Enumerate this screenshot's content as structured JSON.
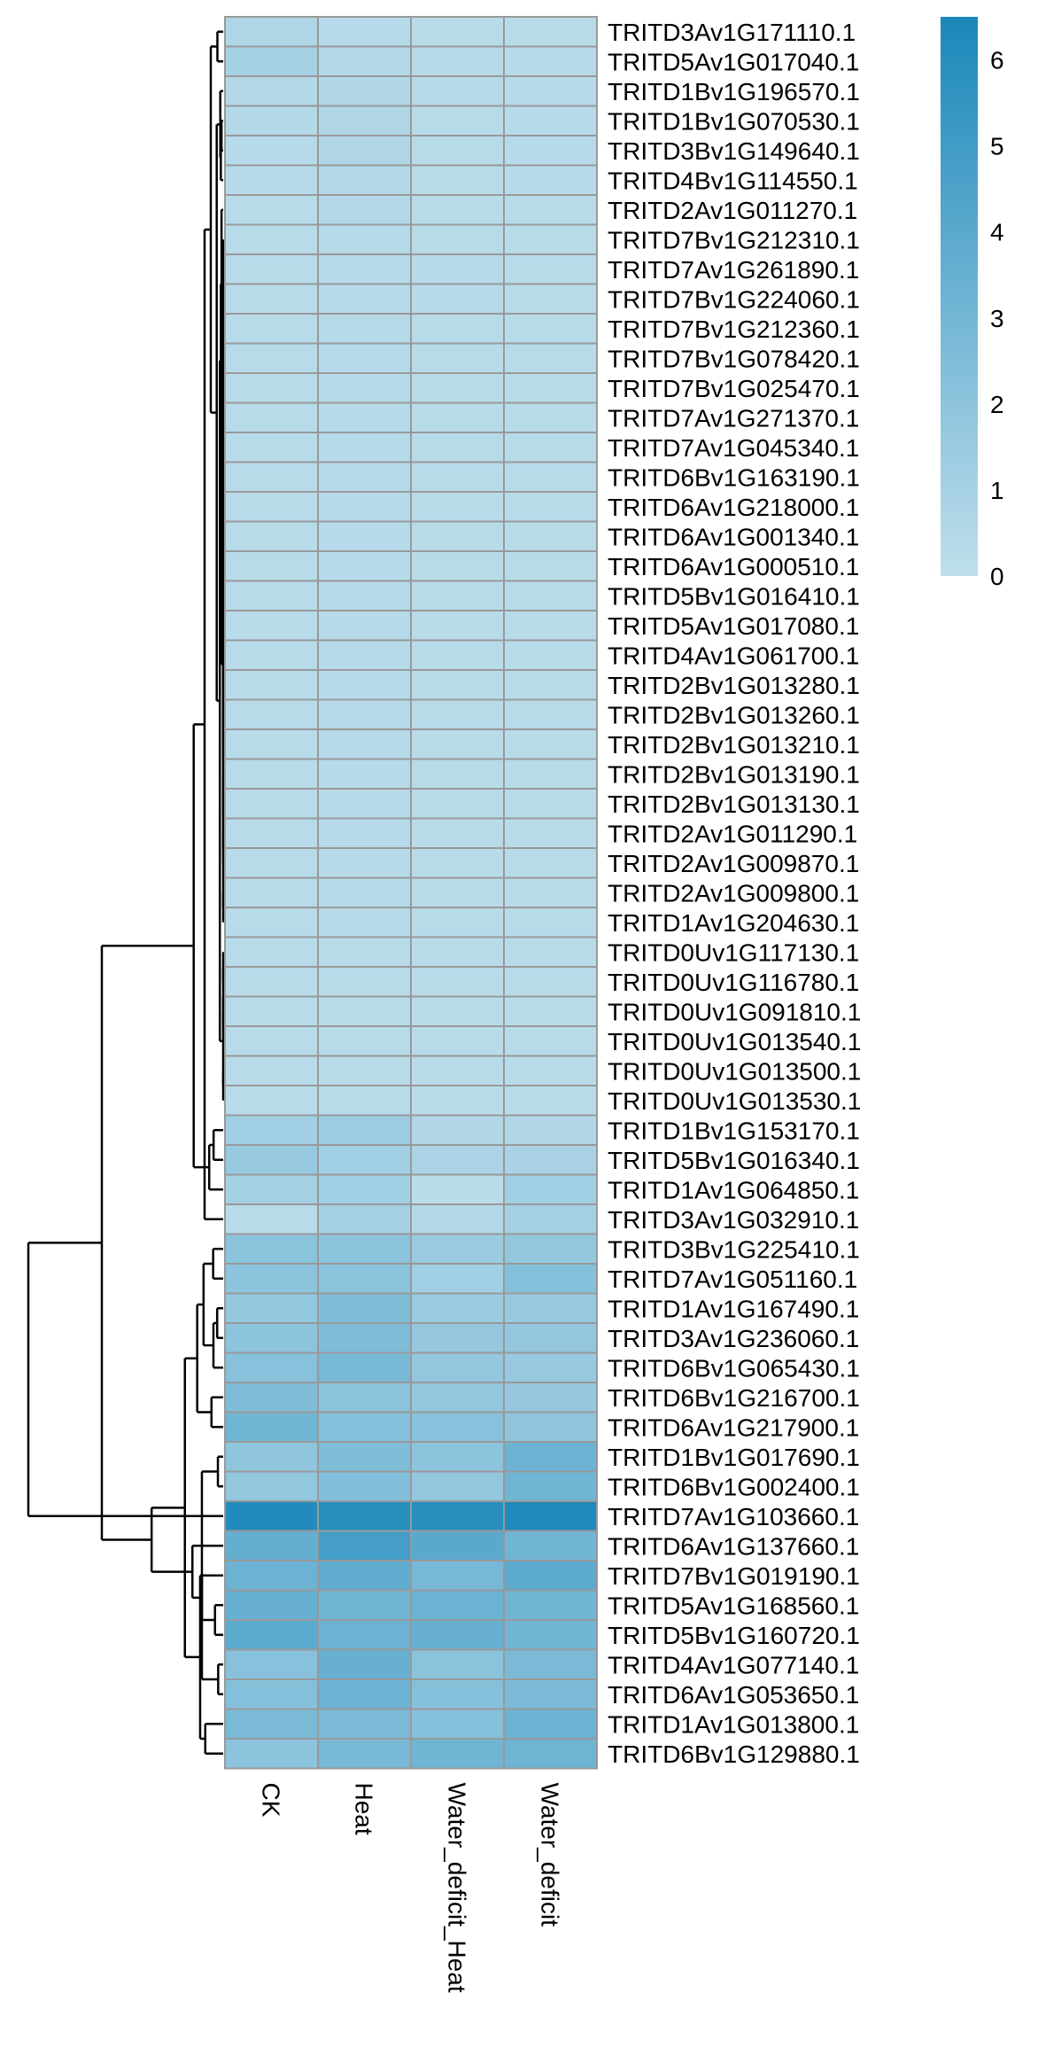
{
  "chart_data": {
    "type": "heatmap",
    "columns": [
      "CK",
      "Heat",
      "Water_deficit_Heat",
      "Water_deficit"
    ],
    "rows": [
      "TRITD3Av1G171110.1",
      "TRITD5Av1G017040.1",
      "TRITD1Bv1G196570.1",
      "TRITD1Bv1G070530.1",
      "TRITD3Bv1G149640.1",
      "TRITD4Bv1G114550.1",
      "TRITD2Av1G011270.1",
      "TRITD7Bv1G212310.1",
      "TRITD7Av1G261890.1",
      "TRITD7Bv1G224060.1",
      "TRITD7Bv1G212360.1",
      "TRITD7Bv1G078420.1",
      "TRITD7Bv1G025470.1",
      "TRITD7Av1G271370.1",
      "TRITD7Av1G045340.1",
      "TRITD6Bv1G163190.1",
      "TRITD6Av1G218000.1",
      "TRITD6Av1G001340.1",
      "TRITD6Av1G000510.1",
      "TRITD5Bv1G016410.1",
      "TRITD5Av1G017080.1",
      "TRITD4Av1G061700.1",
      "TRITD2Bv1G013280.1",
      "TRITD2Bv1G013260.1",
      "TRITD2Bv1G013210.1",
      "TRITD2Bv1G013190.1",
      "TRITD2Bv1G013130.1",
      "TRITD2Av1G011290.1",
      "TRITD2Av1G009870.1",
      "TRITD2Av1G009800.1",
      "TRITD1Av1G204630.1",
      "TRITD0Uv1G117130.1",
      "TRITD0Uv1G116780.1",
      "TRITD0Uv1G091810.1",
      "TRITD0Uv1G013540.1",
      "TRITD0Uv1G013500.1",
      "TRITD0Uv1G013530.1",
      "TRITD1Bv1G153170.1",
      "TRITD5Bv1G016340.1",
      "TRITD1Av1G064850.1",
      "TRITD3Av1G032910.1",
      "TRITD3Bv1G225410.1",
      "TRITD7Av1G051160.1",
      "TRITD1Av1G167490.1",
      "TRITD3Av1G236060.1",
      "TRITD6Bv1G065430.1",
      "TRITD6Bv1G216700.1",
      "TRITD6Av1G217900.1",
      "TRITD1Bv1G017690.1",
      "TRITD6Bv1G002400.1",
      "TRITD7Av1G103660.1",
      "TRITD6Av1G137660.1",
      "TRITD7Bv1G019190.1",
      "TRITD5Av1G168560.1",
      "TRITD5Bv1G160720.1",
      "TRITD4Av1G077140.1",
      "TRITD6Av1G053650.1",
      "TRITD1Av1G013800.1",
      "TRITD6Bv1G129880.1"
    ],
    "values": [
      [
        0.7,
        0.4,
        0.3,
        0.3
      ],
      [
        1.0,
        0.5,
        0.4,
        0.4
      ],
      [
        0.5,
        0.6,
        0.4,
        0.4
      ],
      [
        0.5,
        0.6,
        0.3,
        0.4
      ],
      [
        0.4,
        0.6,
        0.3,
        0.4
      ],
      [
        0.4,
        0.5,
        0.3,
        0.4
      ],
      [
        0.3,
        0.5,
        0.3,
        0.3
      ],
      [
        0.3,
        0.4,
        0.3,
        0.3
      ],
      [
        0.3,
        0.4,
        0.4,
        0.3
      ],
      [
        0.3,
        0.4,
        0.4,
        0.3
      ],
      [
        0.3,
        0.4,
        0.3,
        0.3
      ],
      [
        0.3,
        0.4,
        0.3,
        0.3
      ],
      [
        0.3,
        0.4,
        0.3,
        0.3
      ],
      [
        0.3,
        0.4,
        0.3,
        0.3
      ],
      [
        0.3,
        0.4,
        0.3,
        0.3
      ],
      [
        0.3,
        0.4,
        0.3,
        0.3
      ],
      [
        0.3,
        0.4,
        0.3,
        0.3
      ],
      [
        0.3,
        0.4,
        0.3,
        0.3
      ],
      [
        0.3,
        0.4,
        0.3,
        0.3
      ],
      [
        0.3,
        0.4,
        0.3,
        0.3
      ],
      [
        0.3,
        0.4,
        0.3,
        0.3
      ],
      [
        0.3,
        0.4,
        0.3,
        0.3
      ],
      [
        0.3,
        0.4,
        0.3,
        0.3
      ],
      [
        0.3,
        0.4,
        0.3,
        0.3
      ],
      [
        0.3,
        0.4,
        0.3,
        0.3
      ],
      [
        0.3,
        0.4,
        0.3,
        0.3
      ],
      [
        0.3,
        0.4,
        0.3,
        0.3
      ],
      [
        0.3,
        0.4,
        0.3,
        0.3
      ],
      [
        0.3,
        0.4,
        0.3,
        0.3
      ],
      [
        0.3,
        0.4,
        0.3,
        0.3
      ],
      [
        0.3,
        0.4,
        0.3,
        0.3
      ],
      [
        0.3,
        0.3,
        0.3,
        0.3
      ],
      [
        0.3,
        0.3,
        0.3,
        0.3
      ],
      [
        0.3,
        0.3,
        0.3,
        0.3
      ],
      [
        0.3,
        0.3,
        0.3,
        0.3
      ],
      [
        0.3,
        0.3,
        0.3,
        0.3
      ],
      [
        0.3,
        0.3,
        0.3,
        0.3
      ],
      [
        1.2,
        1.4,
        0.6,
        0.6
      ],
      [
        1.6,
        1.2,
        0.8,
        0.9
      ],
      [
        1.1,
        1.2,
        0.2,
        1.2
      ],
      [
        0.3,
        1.0,
        0.5,
        1.1
      ],
      [
        2.1,
        2.0,
        1.5,
        1.8
      ],
      [
        2.0,
        2.1,
        1.2,
        2.3
      ],
      [
        1.8,
        2.5,
        1.5,
        1.6
      ],
      [
        2.0,
        2.6,
        1.7,
        1.8
      ],
      [
        2.2,
        2.8,
        1.8,
        1.6
      ],
      [
        2.6,
        2.1,
        1.8,
        1.7
      ],
      [
        3.1,
        2.3,
        2.2,
        1.9
      ],
      [
        1.9,
        2.5,
        2.0,
        3.3
      ],
      [
        1.8,
        2.4,
        1.8,
        3.1
      ],
      [
        6.2,
        6.0,
        6.0,
        6.3
      ],
      [
        3.6,
        4.8,
        4.0,
        3.1
      ],
      [
        3.3,
        3.8,
        2.9,
        3.9
      ],
      [
        3.5,
        3.1,
        3.3,
        3.1
      ],
      [
        3.9,
        3.3,
        3.5,
        3.1
      ],
      [
        2.2,
        3.5,
        2.1,
        2.7
      ],
      [
        2.3,
        3.3,
        2.3,
        2.7
      ],
      [
        2.7,
        2.7,
        2.3,
        3.3
      ],
      [
        2.0,
        2.8,
        3.1,
        3.2
      ]
    ],
    "legend": {
      "ticks": [
        0,
        1,
        2,
        3,
        4,
        5,
        6
      ],
      "range": [
        0,
        6.5
      ],
      "color_low": "#c0dfec",
      "color_high": "#1a87ba"
    },
    "cell_border_color": "#999999",
    "dendrogram": "rows",
    "legend_position": "right"
  }
}
